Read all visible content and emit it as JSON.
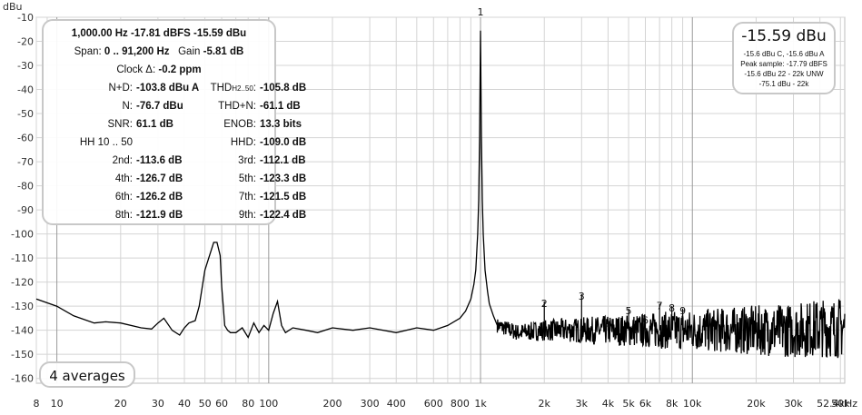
{
  "chart_data": {
    "type": "line",
    "ylabel": "dBu",
    "ylim": [
      -162,
      -10
    ],
    "xlim": [
      8,
      52400
    ],
    "x_scale": "log",
    "y_ticks": [
      -10,
      -20,
      -30,
      -40,
      -50,
      -60,
      -70,
      -80,
      -90,
      -100,
      -110,
      -120,
      -130,
      -140,
      -150,
      -160
    ],
    "x_ticks": [
      {
        "label": "8",
        "value": 8
      },
      {
        "label": "10",
        "value": 10
      },
      {
        "label": "20",
        "value": 20
      },
      {
        "label": "30",
        "value": 30
      },
      {
        "label": "40",
        "value": 40
      },
      {
        "label": "50",
        "value": 50
      },
      {
        "label": "60",
        "value": 60
      },
      {
        "label": "80",
        "value": 80
      },
      {
        "label": "100",
        "value": 100
      },
      {
        "label": "200",
        "value": 200
      },
      {
        "label": "300",
        "value": 300
      },
      {
        "label": "400",
        "value": 400
      },
      {
        "label": "600",
        "value": 600
      },
      {
        "label": "800",
        "value": 800
      },
      {
        "label": "1k",
        "value": 1000
      },
      {
        "label": "2k",
        "value": 2000
      },
      {
        "label": "3k",
        "value": 3000
      },
      {
        "label": "4k",
        "value": 4000
      },
      {
        "label": "5k",
        "value": 5000
      },
      {
        "label": "6k",
        "value": 6000
      },
      {
        "label": "8k",
        "value": 8000
      },
      {
        "label": "10k",
        "value": 10000
      },
      {
        "label": "20k",
        "value": 20000
      },
      {
        "label": "30k",
        "value": 30000
      },
      {
        "label": "50k",
        "value": 50000
      },
      {
        "label": "52.4kHz",
        "value": 52400
      }
    ],
    "series": [
      {
        "color": "#000000",
        "x": [
          8,
          10,
          12,
          15,
          17,
          20,
          25,
          28,
          30,
          32,
          35,
          38,
          40,
          42,
          45,
          47,
          50,
          53,
          55,
          57,
          59,
          60,
          61,
          62,
          64,
          66,
          70,
          75,
          80,
          85,
          90,
          95,
          100,
          105,
          110,
          115,
          120,
          130,
          150,
          170,
          200,
          250,
          300,
          400,
          500,
          600,
          700,
          800,
          850,
          900,
          930,
          950,
          970,
          980,
          990,
          1000,
          1010,
          1020,
          1030,
          1050,
          1080,
          1100,
          1150,
          1200,
          1500,
          2000,
          3000,
          5000,
          8000,
          10000,
          15000,
          20000,
          30000,
          40000,
          52400
        ],
        "y": [
          -127,
          -130,
          -134,
          -137,
          -136.5,
          -137,
          -139,
          -139.5,
          -137,
          -135,
          -140,
          -142,
          -139,
          -137,
          -136,
          -130,
          -115,
          -108,
          -103.5,
          -103.5,
          -109,
          -122,
          -130,
          -138,
          -140,
          -141,
          -141,
          -139,
          -143,
          -137,
          -141,
          -138,
          -140,
          -133,
          -128,
          -138,
          -141,
          -139,
          -140,
          -141,
          -139,
          -140,
          -139,
          -141,
          -139,
          -140,
          -138,
          -135,
          -132,
          -127,
          -121,
          -115,
          -100,
          -86,
          -60,
          -15.6,
          -60,
          -86,
          -100,
          -115,
          -124,
          -129,
          -134,
          -138,
          -141,
          -140,
          -140,
          -140,
          -140,
          -140,
          -140,
          -140,
          -140,
          -139,
          -139
        ]
      }
    ],
    "harmonic_markers": [
      {
        "label": "1",
        "x": 1000,
        "y": -10
      },
      {
        "label": "2",
        "x": 2000,
        "y": -131
      },
      {
        "label": "3",
        "x": 3000,
        "y": -128
      },
      {
        "label": "4",
        "x": 4000,
        "y": -140
      },
      {
        "label": "5",
        "x": 5000,
        "y": -134
      },
      {
        "label": "6",
        "x": 6000,
        "y": -138
      },
      {
        "label": "7",
        "x": 7000,
        "y": -132
      },
      {
        "label": "8",
        "x": 8000,
        "y": -133
      },
      {
        "label": "9",
        "x": 9000,
        "y": -134
      }
    ]
  },
  "stats_panel": {
    "line1": "1,000.00 Hz  -17.81 dBFS  -15.59 dBu",
    "span_key": "Span:",
    "span_val": "0 .. 91,200 Hz",
    "gain_key": "Gain",
    "gain_val": "-5.81 dB",
    "clock_key": "Clock Δ:",
    "clock_val": "-0.2 ppm",
    "rows": [
      {
        "lk": "N+D:",
        "lv": "-103.8 dBu A",
        "rk": "THD",
        "rk_sub": "H2..50",
        "rv": "-105.8 dB"
      },
      {
        "lk": "N:",
        "lv": "-76.7 dBu",
        "rk": "THD+N:",
        "rk_sub": "",
        "rv": "-61.1 dB"
      },
      {
        "lk": "SNR:",
        "lv": "61.1 dB",
        "rk": "ENOB:",
        "rk_sub": "",
        "rv": "13.3 bits"
      },
      {
        "lk": "HH 10 .. 50",
        "lv": "",
        "rk": "HHD:",
        "rk_sub": "",
        "rv": "-109.0 dB"
      },
      {
        "lk": "2nd:",
        "lv": "-113.6 dB",
        "rk": "3rd:",
        "rk_sub": "",
        "rv": "-112.1 dB"
      },
      {
        "lk": "4th:",
        "lv": "-126.7 dB",
        "rk": "5th:",
        "rk_sub": "",
        "rv": "-123.3 dB"
      },
      {
        "lk": "6th:",
        "lv": "-126.2 dB",
        "rk": "7th:",
        "rk_sub": "",
        "rv": "-121.5 dB"
      },
      {
        "lk": "8th:",
        "lv": "-121.9 dB",
        "rk": "9th:",
        "rk_sub": "",
        "rv": "-122.4 dB"
      }
    ]
  },
  "level_panel": {
    "big": "-15.59 dBu",
    "lines": [
      "-15.6 dBu C, -15.6 dBu A",
      "Peak sample: -17.79 dBFS",
      "-15.6 dBu 22 - 22k UNW",
      "-75.1 dBu - 22k"
    ]
  },
  "averages_label": "4 averages"
}
